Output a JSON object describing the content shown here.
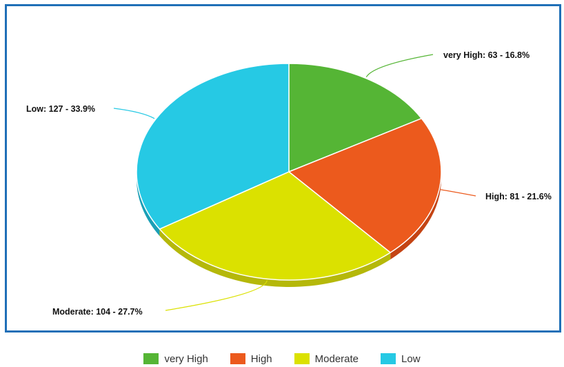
{
  "chart_data": {
    "type": "pie",
    "title": "",
    "legend_position": "bottom",
    "slices": [
      {
        "name": "very High",
        "value": 63,
        "percent": 16.8,
        "color": "#55b535",
        "side_color": "#3f8f25",
        "label": "very High: 63 - 16.8%"
      },
      {
        "name": "High",
        "value": 81,
        "percent": 21.6,
        "color": "#ec5a1d",
        "side_color": "#c44414",
        "label": "High: 81 - 21.6%"
      },
      {
        "name": "Moderate",
        "value": 104,
        "percent": 27.7,
        "color": "#dbe100",
        "side_color": "#b5b80a",
        "label": "Moderate: 104 - 27.7%"
      },
      {
        "name": "Low",
        "value": 127,
        "percent": 33.9,
        "color": "#26c9e4",
        "side_color": "#1a9fb6",
        "label": "Low: 127 - 33.9%"
      }
    ]
  }
}
